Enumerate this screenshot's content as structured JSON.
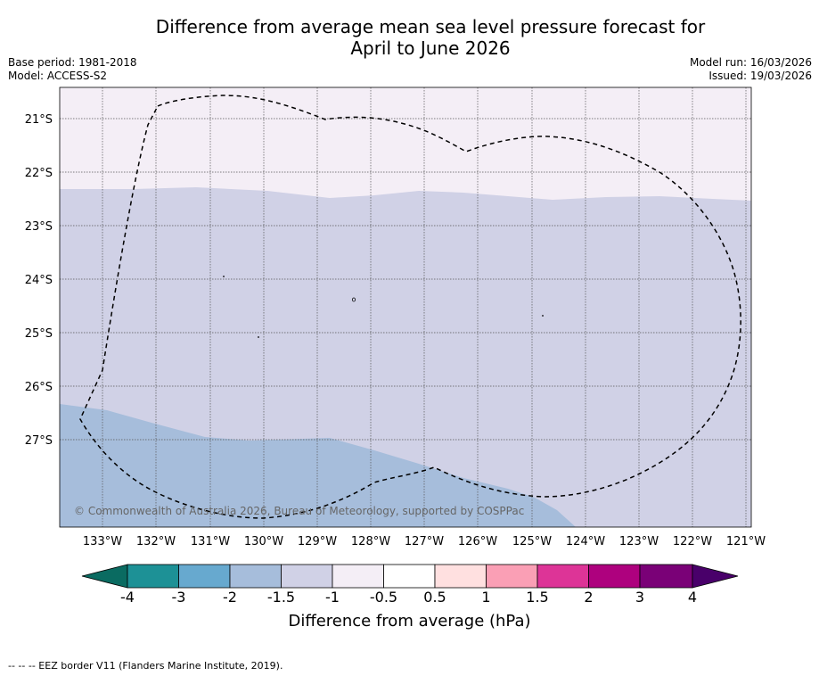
{
  "title_line1": "Difference from average mean sea level pressure forecast for",
  "title_line2": "April to June 2026",
  "meta_left": {
    "base_period": "Base period: 1981-2018",
    "model": "Model: ACCESS-S2"
  },
  "meta_right": {
    "model_run": "Model run: 16/03/2026",
    "issued": "Issued: 19/03/2026"
  },
  "map": {
    "lat_labels": [
      "21°S",
      "22°S",
      "23°S",
      "24°S",
      "25°S",
      "26°S",
      "27°S"
    ],
    "lon_labels": [
      "133°W",
      "132°W",
      "131°W",
      "130°W",
      "129°W",
      "128°W",
      "127°W",
      "126°W",
      "125°W",
      "124°W",
      "123°W",
      "122°W",
      "121°W"
    ],
    "copyright": "© Commonwealth of Australia 2026, Bureau of Meteorology, supported by COSPPac",
    "fill_colors": {
      "band_-1_to_-0.5": "#f4eef6",
      "band_-1.5_to_-1": "#d0d1e6",
      "band_-2_to_-1.5": "#a6bddb"
    }
  },
  "colorbar": {
    "ticks": [
      "-4",
      "-3",
      "-2",
      "-1.5",
      "-1",
      "-0.5",
      "0.5",
      "1",
      "1.5",
      "2",
      "3",
      "4"
    ],
    "title": "Difference from average (hPa)",
    "colors": [
      "#0a6b61",
      "#1d9196",
      "#67a9cf",
      "#a6bddb",
      "#d0d1e6",
      "#f4eef6",
      "#ffffff",
      "#ffe0e0",
      "#fa9fb5",
      "#dd3497",
      "#ae017e",
      "#7a0177",
      "#49006a"
    ]
  },
  "footer": "--  --  -- EEZ border V11 (Flanders Marine Institute, 2019)."
}
